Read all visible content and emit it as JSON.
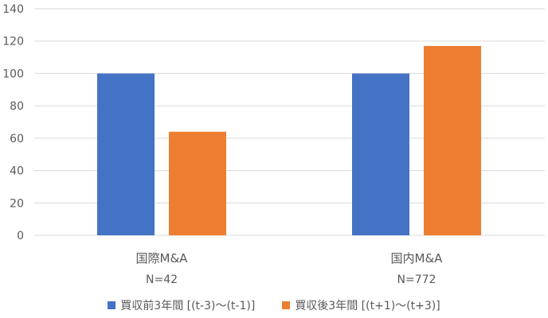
{
  "chart_data": {
    "type": "bar",
    "categories": [
      "国際M&A",
      "国内M&A"
    ],
    "category_sublabels": [
      "N=42",
      "N=772"
    ],
    "series": [
      {
        "name": "買収前3年間 [(t-3)〜(t-1)]",
        "values": [
          100,
          100
        ],
        "color": "#4472C4"
      },
      {
        "name": "買収後3年間 [(t+1)〜(t+3)]",
        "values": [
          64,
          117
        ],
        "color": "#ED7D31"
      }
    ],
    "ylim": [
      0,
      140
    ],
    "yticks": [
      "0",
      "20",
      "40",
      "60",
      "80",
      "100",
      "120",
      "140"
    ],
    "grid": true,
    "legend": "bottom",
    "grid_color": "#d9d9d9",
    "text_color": "#595959"
  }
}
